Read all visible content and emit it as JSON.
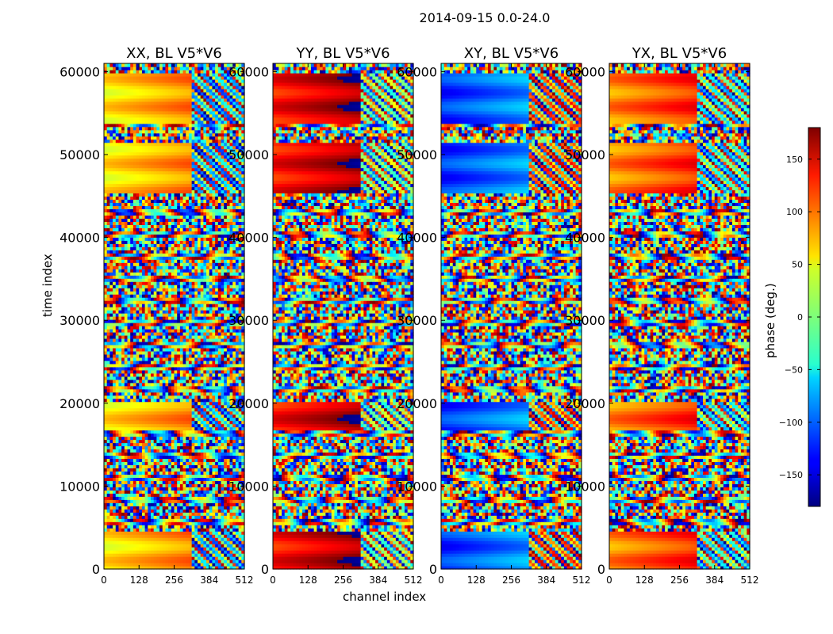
{
  "suptitle": "2014-09-15 0.0-24.0",
  "xlabel": "channel index",
  "ylabel": "time index",
  "colorbar": {
    "label": "phase (deg.)",
    "ticks": [
      150,
      100,
      50,
      0,
      -50,
      -100,
      -150
    ],
    "tick_labels": [
      "150",
      "100",
      "50",
      "0",
      "−50",
      "−100",
      "−150"
    ],
    "range": [
      -180,
      180
    ],
    "colormap": "jet"
  },
  "chart_data": [
    {
      "type": "heatmap",
      "title": "XX, BL V5*V6",
      "xlabel": "channel index",
      "ylabel": "time index",
      "xlim": [
        0,
        512
      ],
      "ylim": [
        0,
        61000
      ],
      "xticks": [
        0,
        128,
        256,
        384,
        512
      ],
      "yticks": [
        0,
        10000,
        20000,
        30000,
        40000,
        50000,
        60000
      ],
      "value": "phase (deg.)",
      "dominant_low_band_phase": 50
    },
    {
      "type": "heatmap",
      "title": "YY, BL V5*V6",
      "xlabel": "channel index",
      "ylabel": "time index",
      "xlim": [
        0,
        512
      ],
      "ylim": [
        0,
        61000
      ],
      "xticks": [
        0,
        128,
        256,
        384,
        512
      ],
      "yticks": [
        0,
        10000,
        20000,
        30000,
        40000,
        50000,
        60000
      ],
      "value": "phase (deg.)",
      "dominant_low_band_phase": 130
    },
    {
      "type": "heatmap",
      "title": "XY, BL V5*V6",
      "xlabel": "channel index",
      "ylabel": "time index",
      "xlim": [
        0,
        512
      ],
      "ylim": [
        0,
        61000
      ],
      "xticks": [
        0,
        128,
        256,
        384,
        512
      ],
      "yticks": [
        0,
        10000,
        20000,
        30000,
        40000,
        50000,
        60000
      ],
      "value": "phase (deg.)",
      "dominant_low_band_phase": -120
    },
    {
      "type": "heatmap",
      "title": "YX, BL V5*V6",
      "xlabel": "channel index",
      "ylabel": "time index",
      "xlim": [
        0,
        512
      ],
      "ylim": [
        0,
        61000
      ],
      "xticks": [
        0,
        128,
        256,
        384,
        512
      ],
      "yticks": [
        0,
        10000,
        20000,
        30000,
        40000,
        50000,
        60000
      ],
      "value": "phase (deg.)",
      "dominant_low_band_phase": 85
    }
  ]
}
